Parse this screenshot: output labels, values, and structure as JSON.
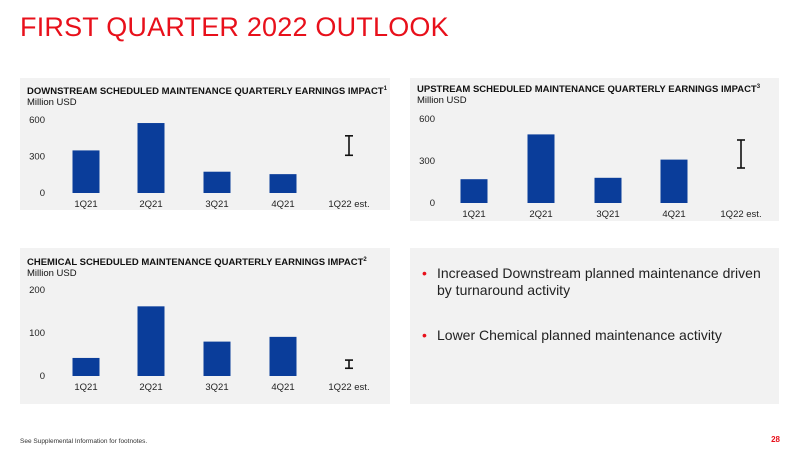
{
  "page": {
    "title": "FIRST QUARTER 2022 OUTLOOK",
    "footnote": "See Supplemental Information for footnotes.",
    "page_number": "28"
  },
  "colors": {
    "bar": "#0a3d9a",
    "accent": "#e8101b",
    "panel_bg": "#f2f2f2"
  },
  "panels": {
    "downstream": {
      "title": "DOWNSTREAM SCHEDULED MAINTENANCE QUARTERLY EARNINGS IMPACT",
      "note": "1",
      "unit": "Million USD"
    },
    "upstream": {
      "title": "UPSTREAM SCHEDULED MAINTENANCE QUARTERLY EARNINGS IMPACT",
      "note": "3",
      "unit": "Million USD"
    },
    "chemical": {
      "title": "CHEMICAL SCHEDULED MAINTENANCE QUARTERLY EARNINGS IMPACT",
      "note": "2",
      "unit": "Million USD"
    }
  },
  "bullets": [
    "Increased Downstream planned maintenance driven by turnaround activity",
    "Lower Chemical planned maintenance activity"
  ],
  "chart_data": [
    {
      "id": "downstream",
      "type": "bar",
      "title": "DOWNSTREAM SCHEDULED MAINTENANCE QUARTERLY EARNINGS IMPACT",
      "ylabel": "Million USD",
      "categories": [
        "1Q21",
        "2Q21",
        "3Q21",
        "4Q21",
        "1Q22 est."
      ],
      "values": [
        350,
        575,
        175,
        155,
        null
      ],
      "range_estimate": {
        "category": "1Q22 est.",
        "low": 310,
        "high": 470
      },
      "yticks": [
        0,
        300,
        600
      ],
      "ylim": [
        0,
        600
      ]
    },
    {
      "id": "upstream",
      "type": "bar",
      "title": "UPSTREAM SCHEDULED MAINTENANCE QUARTERLY EARNINGS IMPACT",
      "ylabel": "Million USD",
      "categories": [
        "1Q21",
        "2Q21",
        "3Q21",
        "4Q21",
        "1Q22 est."
      ],
      "values": [
        170,
        490,
        180,
        310,
        null
      ],
      "range_estimate": {
        "category": "1Q22 est.",
        "low": 250,
        "high": 450
      },
      "yticks": [
        0,
        300,
        600
      ],
      "ylim": [
        0,
        600
      ]
    },
    {
      "id": "chemical",
      "type": "bar",
      "title": "CHEMICAL SCHEDULED MAINTENANCE QUARTERLY EARNINGS IMPACT",
      "ylabel": "Million USD",
      "categories": [
        "1Q21",
        "2Q21",
        "3Q21",
        "4Q21",
        "1Q22 est."
      ],
      "values": [
        42,
        162,
        80,
        91,
        null
      ],
      "range_estimate": {
        "category": "1Q22 est.",
        "low": 18,
        "high": 37
      },
      "yticks": [
        0,
        100,
        200
      ],
      "ylim": [
        0,
        200
      ]
    }
  ]
}
